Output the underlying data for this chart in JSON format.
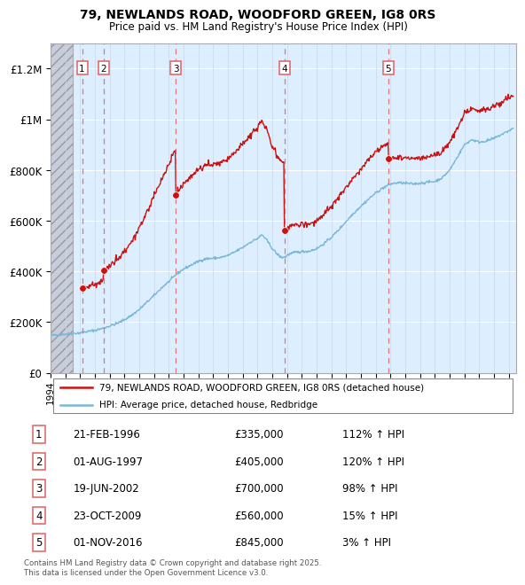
{
  "title_line1": "79, NEWLANDS ROAD, WOODFORD GREEN, IG8 0RS",
  "title_line2": "Price paid vs. HM Land Registry's House Price Index (HPI)",
  "hpi_color": "#7ab8d8",
  "price_color": "#cc1111",
  "sale_dates": [
    1996.13,
    1997.58,
    2002.46,
    2009.81,
    2016.83
  ],
  "sale_prices": [
    335000,
    405000,
    700000,
    560000,
    845000
  ],
  "sale_labels": [
    "1",
    "2",
    "3",
    "4",
    "5"
  ],
  "dashed_line_color": "#e06060",
  "legend_price_label": "79, NEWLANDS ROAD, WOODFORD GREEN, IG8 0RS (detached house)",
  "legend_hpi_label": "HPI: Average price, detached house, Redbridge",
  "table_entries": [
    {
      "num": "1",
      "date": "21-FEB-1996",
      "price": "£335,000",
      "hpi": "112% ↑ HPI"
    },
    {
      "num": "2",
      "date": "01-AUG-1997",
      "price": "£405,000",
      "hpi": "120% ↑ HPI"
    },
    {
      "num": "3",
      "date": "19-JUN-2002",
      "price": "£700,000",
      "hpi": "98% ↑ HPI"
    },
    {
      "num": "4",
      "date": "23-OCT-2009",
      "price": "£560,000",
      "hpi": "15% ↑ HPI"
    },
    {
      "num": "5",
      "date": "01-NOV-2016",
      "price": "£845,000",
      "hpi": "3% ↑ HPI"
    }
  ],
  "footnote": "Contains HM Land Registry data © Crown copyright and database right 2025.\nThis data is licensed under the Open Government Licence v3.0.",
  "yticks": [
    0,
    200000,
    400000,
    600000,
    800000,
    1000000,
    1200000
  ],
  "ytick_labels": [
    "£0",
    "£200K",
    "£400K",
    "£600K",
    "£800K",
    "£1M",
    "£1.2M"
  ],
  "xlim_start": 1994.0,
  "xlim_end": 2025.5,
  "ylim_min": 0,
  "ylim_max": 1300000,
  "hatch_region_end": 1995.5,
  "background_chart": "#ddeeff"
}
